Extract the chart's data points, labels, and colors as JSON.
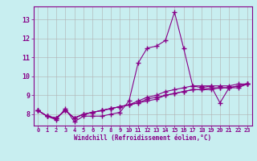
{
  "xlabel": "Windchill (Refroidissement éolien,°C)",
  "x": [
    0,
    1,
    2,
    3,
    4,
    5,
    6,
    7,
    8,
    9,
    10,
    11,
    12,
    13,
    14,
    15,
    16,
    17,
    18,
    19,
    20,
    21,
    22,
    23
  ],
  "line1": [
    8.2,
    7.9,
    7.7,
    8.3,
    7.6,
    7.9,
    7.9,
    7.9,
    8.0,
    8.1,
    8.7,
    10.7,
    11.5,
    11.6,
    11.9,
    13.4,
    11.5,
    9.5,
    9.4,
    9.5,
    8.6,
    9.4,
    9.5,
    9.6
  ],
  "line2": [
    8.2,
    7.9,
    7.8,
    8.2,
    7.8,
    8.0,
    8.1,
    8.2,
    8.3,
    8.4,
    8.5,
    8.7,
    8.9,
    9.0,
    9.2,
    9.3,
    9.4,
    9.5,
    9.5,
    9.5,
    9.5,
    9.5,
    9.6,
    9.6
  ],
  "line3": [
    8.2,
    7.9,
    7.8,
    8.2,
    7.8,
    8.0,
    8.1,
    8.2,
    8.3,
    8.4,
    8.5,
    8.6,
    8.7,
    8.8,
    9.0,
    9.1,
    9.2,
    9.3,
    9.3,
    9.4,
    9.4,
    9.4,
    9.5,
    9.6
  ],
  "line4": [
    8.2,
    7.9,
    7.8,
    8.2,
    7.8,
    8.0,
    8.1,
    8.2,
    8.3,
    8.4,
    8.5,
    8.6,
    8.8,
    8.9,
    9.0,
    9.1,
    9.2,
    9.3,
    9.3,
    9.3,
    9.4,
    9.4,
    9.4,
    9.6
  ],
  "bg_color": "#c8eef0",
  "grid_color": "#b0b0b0",
  "line_color": "#880088",
  "ylim": [
    7.4,
    13.7
  ],
  "yticks": [
    8,
    9,
    10,
    11,
    12,
    13
  ],
  "marker": "+",
  "markersize": 4,
  "linewidth": 0.8
}
